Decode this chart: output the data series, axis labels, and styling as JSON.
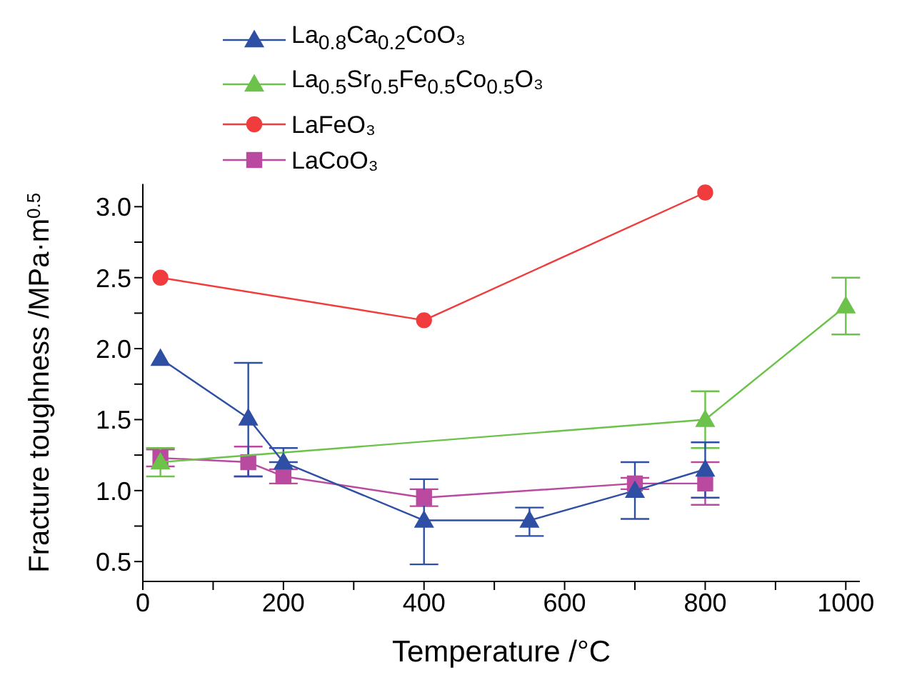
{
  "chart_data": {
    "type": "line",
    "xlabel": "Temperature /°C",
    "ylabel": "Fracture toughness /MPa·m$^{0.5}$",
    "xlim": [
      0,
      1020
    ],
    "xticks": [
      0,
      {
        "value": 100,
        "label": null
      },
      200,
      {
        "value": 300,
        "label": null
      },
      400,
      {
        "value": 500,
        "label": null
      },
      600,
      {
        "value": 700,
        "label": null
      },
      800,
      {
        "value": 900,
        "label": null
      },
      1000
    ],
    "ylim": [
      0.36,
      3.16
    ],
    "yticks": [
      0.5,
      {
        "value": 0.75,
        "label": null
      },
      {
        "value": 1,
        "label": "1.0"
      },
      {
        "value": 1.25,
        "label": null
      },
      1.5,
      {
        "value": 1.75,
        "label": null
      },
      {
        "value": 2,
        "label": "2.0"
      },
      {
        "value": 2.25,
        "label": null
      },
      2.5,
      {
        "value": 2.75,
        "label": null
      },
      {
        "value": 3,
        "label": "3.0"
      }
    ],
    "legend": "top left",
    "line_style": "solid",
    "series": [
      {
        "name": "La$_{0.8}$Ca$_{0.2}$CoO₃",
        "color": "#2e4fa3",
        "marker": "triangle",
        "x": [
          25,
          150,
          200,
          400,
          550,
          700,
          800
        ],
        "values": [
          1.93,
          1.51,
          1.2,
          0.79,
          0.79,
          1.0,
          1.15
        ],
        "errors": [
          null,
          [
            1.1,
            1.9
          ],
          [
            1.2,
            1.3
          ],
          [
            0.48,
            1.08
          ],
          [
            0.68,
            0.88
          ],
          [
            0.8,
            1.2
          ],
          [
            0.95,
            1.34
          ]
        ]
      },
      {
        "name": "La$_{0.5}$Sr$_{0.5}$Fe$_{0.5}$Co$_{0.5}$O₃",
        "color": "#6cc24a",
        "marker": "triangle",
        "x": [
          25,
          800,
          1000
        ],
        "values": [
          1.2,
          1.5,
          2.3
        ],
        "errors": [
          [
            1.1,
            1.3
          ],
          [
            1.3,
            1.7
          ],
          [
            2.1,
            2.5
          ]
        ]
      },
      {
        "name": "LaFeO₃",
        "color": "#f03c3c",
        "marker": "circle",
        "x": [
          25,
          400,
          800
        ],
        "values": [
          2.5,
          2.2,
          3.1
        ]
      },
      {
        "name": "LaCoO₃",
        "color": "#b94aa0",
        "marker": "square",
        "x": [
          25,
          150,
          200,
          400,
          700,
          800
        ],
        "values": [
          1.23,
          1.2,
          1.1,
          0.95,
          1.05,
          1.05
        ],
        "errors": [
          [
            1.17,
            1.29
          ],
          [
            1.1,
            1.31
          ],
          [
            1.05,
            1.15
          ],
          [
            0.89,
            1.01
          ],
          [
            1.01,
            1.09
          ],
          [
            0.9,
            1.2
          ]
        ]
      }
    ]
  }
}
